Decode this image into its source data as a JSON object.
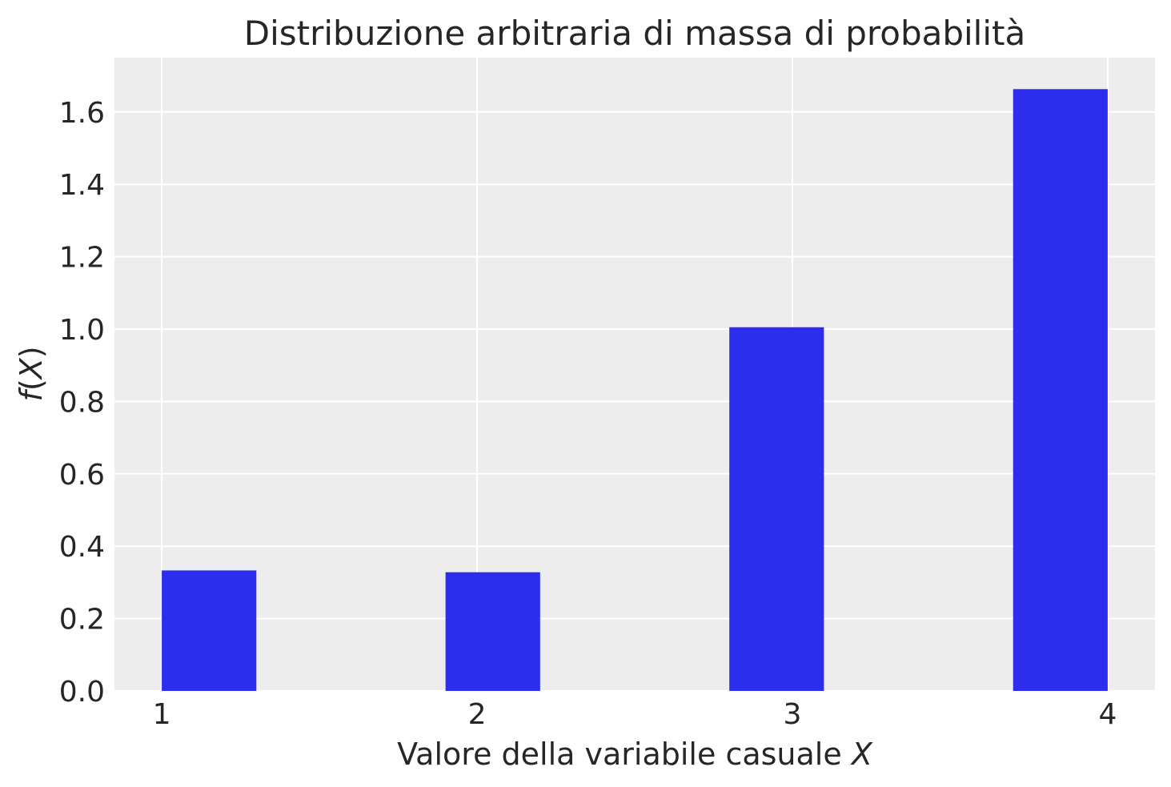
{
  "chart_data": {
    "type": "bar",
    "title": "Distribuzione arbitraria di massa di probabilità",
    "xlabel_text": "Valore della variabile casuale ",
    "xlabel_var": "X",
    "ylabel_f": "f",
    "ylabel_open": "(",
    "ylabel_var": "X",
    "ylabel_close": ")",
    "xlim": [
      0.85,
      4.15
    ],
    "ylim": [
      0.0,
      1.75
    ],
    "x_ticks": [
      1,
      2,
      3,
      4
    ],
    "x_tick_labels": [
      "1",
      "2",
      "3",
      "4"
    ],
    "y_ticks": [
      0.0,
      0.2,
      0.4,
      0.6,
      0.8,
      1.0,
      1.2,
      1.4,
      1.6
    ],
    "y_tick_labels": [
      "0.0",
      "0.2",
      "0.4",
      "0.6",
      "0.8",
      "1.0",
      "1.2",
      "1.4",
      "1.6"
    ],
    "bars": [
      {
        "x_start": 1.0,
        "x_end": 1.3,
        "value": 0.333
      },
      {
        "x_start": 1.9,
        "x_end": 2.2,
        "value": 0.328
      },
      {
        "x_start": 2.8,
        "x_end": 3.1,
        "value": 1.005
      },
      {
        "x_start": 3.7,
        "x_end": 4.0,
        "value": 1.663
      }
    ],
    "grid": true,
    "colors": {
      "bar": "#2c2ded",
      "background": "#ededed",
      "grid": "#ffffff",
      "text": "#262626"
    }
  }
}
